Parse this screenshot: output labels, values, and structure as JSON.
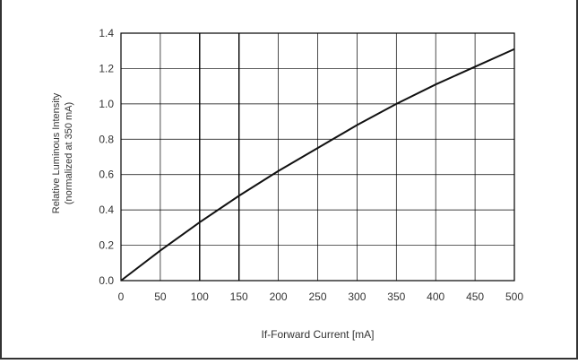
{
  "chart_data": {
    "type": "line",
    "title": "",
    "xlabel": "If-Forward Current [mA]",
    "ylabel_line1": "Relative Luminous Intensity",
    "ylabel_line2": "(normalized at 350 mA)",
    "xlim": [
      0,
      500
    ],
    "ylim": [
      0,
      1.4
    ],
    "xticks": [
      "0",
      "50",
      "100",
      "150",
      "200",
      "250",
      "300",
      "350",
      "400",
      "450",
      "500"
    ],
    "yticks": [
      "0.0",
      "0.2",
      "0.4",
      "0.6",
      "0.8",
      "1.0",
      "1.2",
      "1.4"
    ],
    "grid": true,
    "series": [
      {
        "x": [
          0,
          50,
          100,
          150,
          200,
          250,
          300,
          350,
          400,
          450,
          500
        ],
        "y": [
          0.0,
          0.17,
          0.33,
          0.48,
          0.62,
          0.75,
          0.88,
          1.0,
          1.11,
          1.21,
          1.31
        ]
      }
    ],
    "colors": {
      "line": "#111111",
      "grid": "#000000",
      "frame": "#333333"
    }
  }
}
